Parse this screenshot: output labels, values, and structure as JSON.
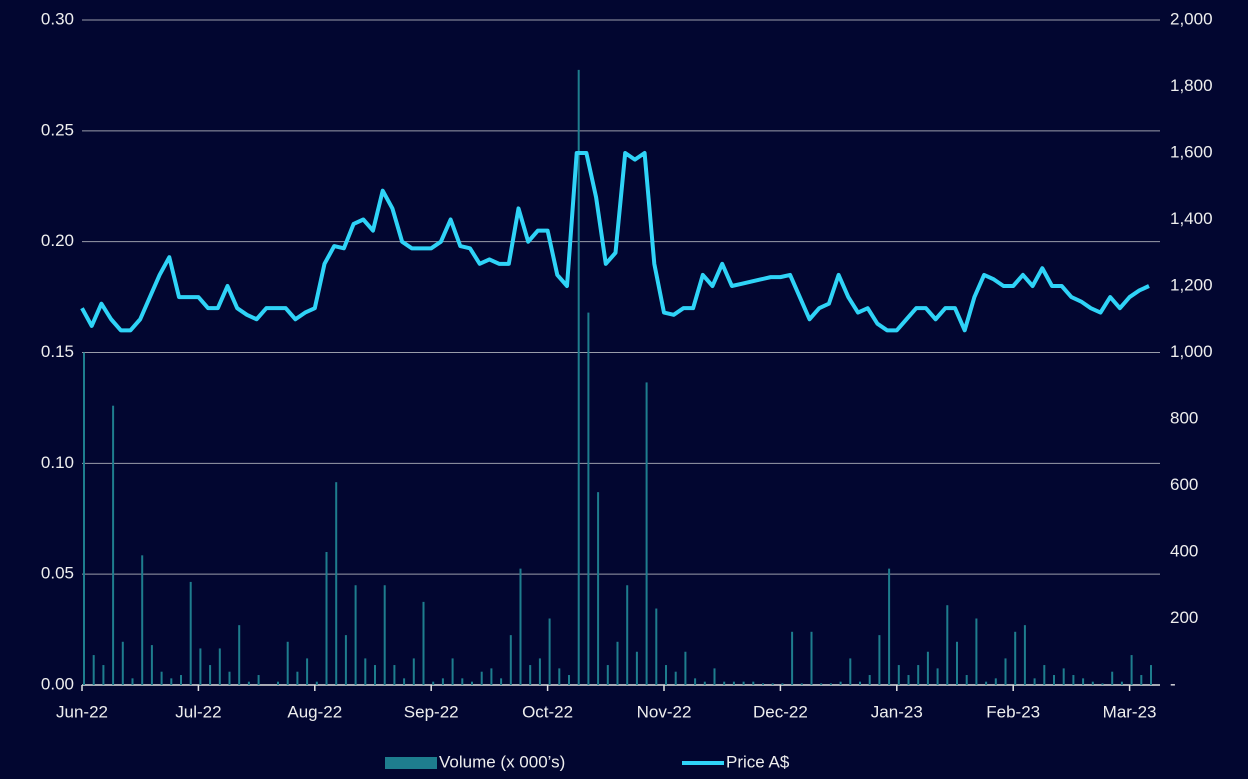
{
  "chart_data": {
    "type": "combo",
    "categories": [
      "Jun-22",
      null,
      null,
      null,
      null,
      null,
      null,
      null,
      null,
      null,
      null,
      null,
      "Jul-22",
      null,
      null,
      null,
      null,
      null,
      null,
      null,
      null,
      null,
      null,
      null,
      "Aug-22",
      null,
      null,
      null,
      null,
      null,
      null,
      null,
      null,
      null,
      null,
      null,
      "Sep-22",
      null,
      null,
      null,
      null,
      null,
      null,
      null,
      null,
      null,
      null,
      null,
      "Oct-22",
      null,
      null,
      null,
      null,
      null,
      null,
      null,
      null,
      null,
      null,
      null,
      "Nov-22",
      null,
      null,
      null,
      null,
      null,
      null,
      null,
      null,
      null,
      null,
      null,
      "Dec-22",
      null,
      null,
      null,
      null,
      null,
      null,
      null,
      null,
      null,
      null,
      null,
      "Jan-23",
      null,
      null,
      null,
      null,
      null,
      null,
      null,
      null,
      null,
      null,
      null,
      "Feb-23",
      null,
      null,
      null,
      null,
      null,
      null,
      null,
      null,
      null,
      null,
      null,
      "Mar-23",
      null,
      null
    ],
    "series": [
      {
        "name": "Volume (x 000’s)",
        "type": "bar",
        "axis": "y2",
        "color": "#1e7d8e",
        "values": [
          1000,
          90,
          60,
          840,
          130,
          20,
          390,
          120,
          40,
          20,
          30,
          310,
          110,
          60,
          110,
          40,
          180,
          10,
          30,
          0,
          10,
          130,
          40,
          80,
          10,
          400,
          610,
          150,
          300,
          80,
          60,
          300,
          60,
          20,
          80,
          250,
          10,
          20,
          80,
          20,
          10,
          40,
          50,
          20,
          150,
          350,
          60,
          80,
          200,
          50,
          30,
          1850,
          1120,
          580,
          60,
          130,
          300,
          100,
          910,
          230,
          60,
          40,
          100,
          20,
          10,
          50,
          10,
          10,
          10,
          10,
          5,
          5,
          5,
          160,
          5,
          160,
          5,
          5,
          10,
          80,
          10,
          30,
          150,
          350,
          60,
          30,
          60,
          100,
          50,
          240,
          130,
          30,
          200,
          10,
          20,
          80,
          160,
          180,
          20,
          60,
          30,
          50,
          30,
          20,
          10,
          5,
          40,
          10,
          90,
          30,
          60
        ]
      },
      {
        "name": "Price A$",
        "type": "line",
        "color": "#2fd3f7",
        "values": [
          0.17,
          0.162,
          0.172,
          0.165,
          0.16,
          0.16,
          0.165,
          0.175,
          0.185,
          0.193,
          0.175,
          0.175,
          0.175,
          0.17,
          0.17,
          0.18,
          0.17,
          0.167,
          0.165,
          0.17,
          0.17,
          0.17,
          0.165,
          0.168,
          0.17,
          0.19,
          0.198,
          0.197,
          0.208,
          0.21,
          0.205,
          0.223,
          0.215,
          0.2,
          0.197,
          0.197,
          0.197,
          0.2,
          0.21,
          0.198,
          0.197,
          0.19,
          0.192,
          0.19,
          0.19,
          0.215,
          0.2,
          0.205,
          0.205,
          0.185,
          0.18,
          0.24,
          0.24,
          0.22,
          0.19,
          0.195,
          0.24,
          0.237,
          0.24,
          0.19,
          0.168,
          0.167,
          0.17,
          0.17,
          0.185,
          0.18,
          0.19,
          0.18,
          0.181,
          0.182,
          0.183,
          0.184,
          0.184,
          0.185,
          0.175,
          0.165,
          0.17,
          0.172,
          0.185,
          0.175,
          0.168,
          0.17,
          0.163,
          0.16,
          0.16,
          0.165,
          0.17,
          0.17,
          0.165,
          0.17,
          0.17,
          0.16,
          0.175,
          0.185,
          0.183,
          0.18,
          0.18,
          0.185,
          0.18,
          0.188,
          0.18,
          0.18,
          0.175,
          0.173,
          0.17,
          0.168,
          0.175,
          0.17,
          0.175,
          0.178,
          0.18
        ]
      }
    ],
    "ylim": [
      0,
      0.3
    ],
    "yticks": [
      {
        "value": 0,
        "label": "0.00"
      },
      0.05,
      {
        "value": 0.1,
        "label": "0.10"
      },
      0.15,
      {
        "value": 0.2,
        "label": "0.20"
      },
      0.25,
      {
        "value": 0.3,
        "label": "0.30"
      }
    ],
    "y2lim": [
      0,
      2000
    ],
    "y2ticks": [
      {
        "value": 0,
        "label": "-"
      },
      200,
      400,
      600,
      800,
      {
        "value": 1000,
        "label": "1,000"
      },
      {
        "value": 1200,
        "label": "1,200"
      },
      {
        "value": 1400,
        "label": "1,400"
      },
      {
        "value": 1600,
        "label": "1,600"
      },
      {
        "value": 1800,
        "label": "1,800"
      },
      {
        "value": 2000,
        "label": "2,000"
      }
    ],
    "grid": true,
    "legend": "bottom"
  }
}
